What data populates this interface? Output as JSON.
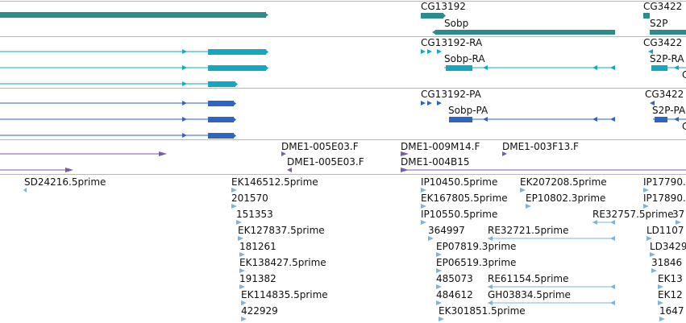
{
  "colors": {
    "gene": "#2e8b8b",
    "rna": "#15a7c0",
    "protein": "#2f63c4",
    "clone": "#7a5aaa",
    "est": "#7fb3d8",
    "divider": "#b8b8b8"
  },
  "tracks": {
    "genes": {
      "labels": {
        "cg13192": "CG13192",
        "cg3422": "CG3422",
        "sobp": "Sobp",
        "s2p": "S2P"
      }
    },
    "transcripts": {
      "labels": {
        "cg13192_ra": "CG13192-RA",
        "cg3422": "CG3422",
        "sobp_ra": "Sobp-RA",
        "s2p_ra": "S2P-RA",
        "c_cut": "C"
      }
    },
    "proteins": {
      "labels": {
        "cg13192_pa": "CG13192-PA",
        "cg3422": "CG3422",
        "sobp_pa": "Sobp-PA",
        "s2p_pa": "S2P-PA",
        "c_cut": "C"
      }
    },
    "clones": {
      "labels": {
        "l1": "DME1-005E03.F",
        "l2": "DME1-005E03.F",
        "l3": "DME1-009M14.F",
        "l4": "DME1-004B15",
        "l5": "DME1-003F13.F"
      }
    },
    "ests": {
      "labels": [
        "SD24216.5prime",
        "EK146512.5prime",
        "201570",
        "151353",
        "EK127837.5prime",
        "181261",
        "EK138427.5prime",
        "191382",
        "EK114835.5prime",
        "422929",
        "IP10450.5prime",
        "EK167805.5prime",
        "IP10550.5prime",
        "364997",
        "EP07819.3prime",
        "EP06519.3prime",
        "485073",
        "484612",
        "EK301851.5prime",
        "EK207208.5prime",
        "EP10802.3prime",
        "RE32757.5prime",
        "RE32721.5prime",
        "RE61154.5prime",
        "GH03834.5prime",
        "IP17790.",
        "IP17890.",
        "37",
        "LD1107",
        "LD3429",
        "31846",
        "EK13",
        "EK12",
        "1647"
      ]
    }
  }
}
